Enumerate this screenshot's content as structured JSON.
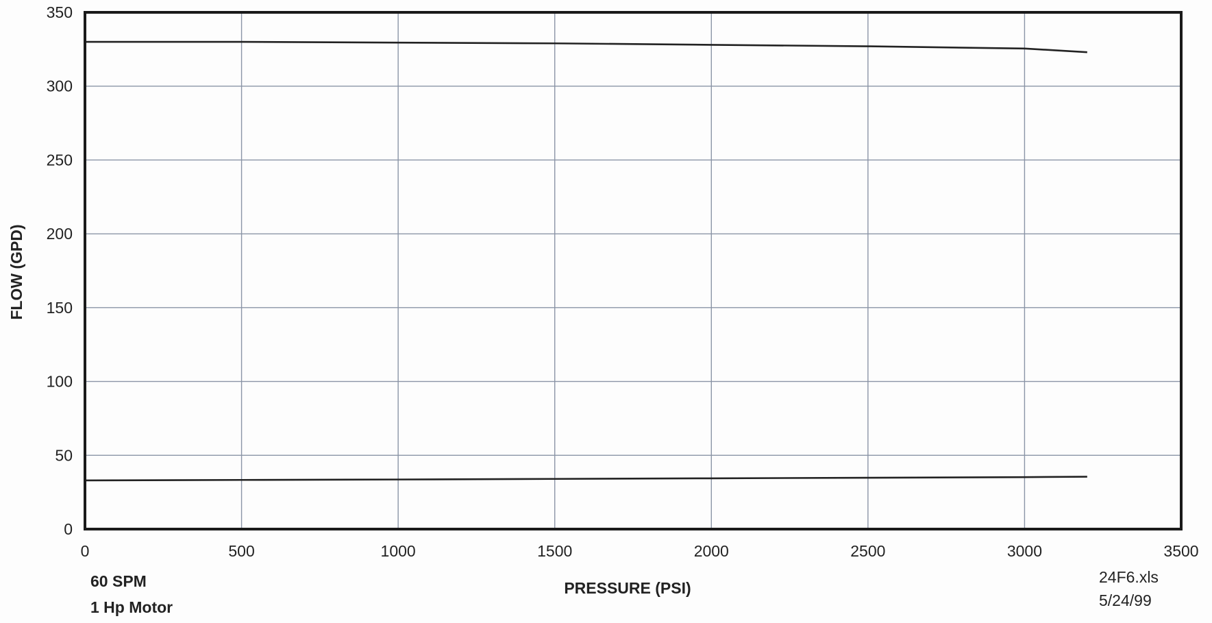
{
  "chart_data": {
    "type": "line",
    "title": "",
    "xlabel": "PRESSURE  (PSI)",
    "ylabel": "FLOW  (GPD)",
    "xlim": [
      0,
      3500
    ],
    "ylim": [
      0,
      350
    ],
    "x_ticks": [
      0,
      500,
      1000,
      1500,
      2000,
      2500,
      3000,
      3500
    ],
    "y_ticks": [
      0,
      50,
      100,
      150,
      200,
      250,
      300,
      350
    ],
    "grid": true,
    "legend": "none",
    "series": [
      {
        "x": [
          0,
          500,
          1000,
          1500,
          2000,
          2500,
          3000,
          3200
        ],
        "y": [
          330,
          330,
          329.5,
          329,
          328,
          327,
          325.5,
          323
        ],
        "color": "#222222"
      },
      {
        "x": [
          0,
          500,
          1000,
          1500,
          2000,
          2500,
          3000,
          3200
        ],
        "y": [
          33,
          33.3,
          33.6,
          34,
          34.4,
          34.8,
          35.2,
          35.5
        ],
        "color": "#222222"
      }
    ],
    "grid_color": "#8a94a6"
  },
  "notes": {
    "left_line1": "60 SPM",
    "left_line2": "1 Hp Motor",
    "right_line1": "24F6.xls",
    "right_line2": "5/24/99"
  }
}
